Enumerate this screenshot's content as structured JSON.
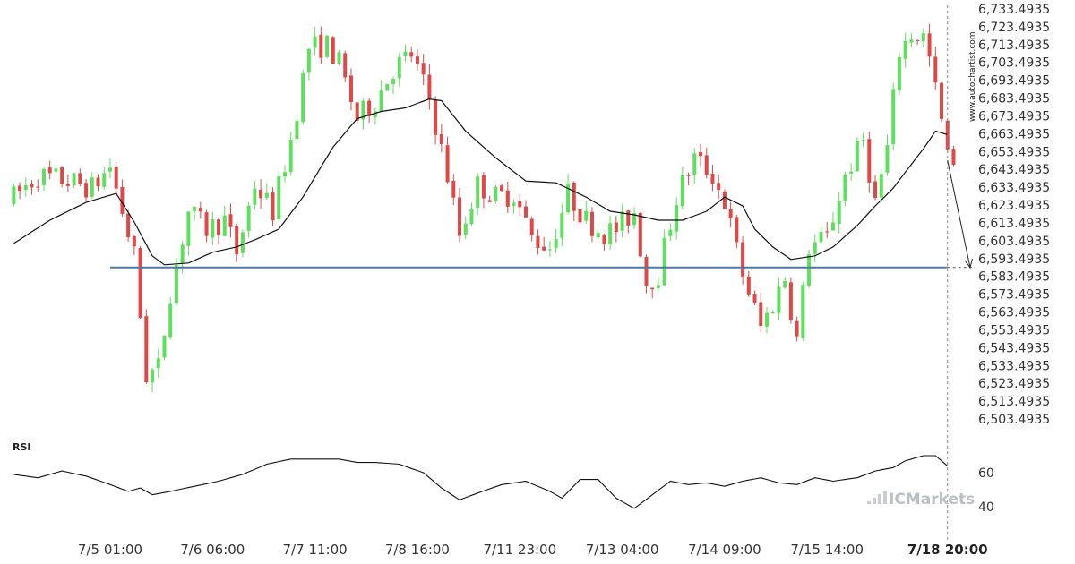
{
  "chart_data": {
    "type": "candlestick",
    "y_ticks": [
      "6,733.4935",
      "6,723.4935",
      "6,713.4935",
      "6,703.4935",
      "6,693.4935",
      "6,683.4935",
      "6,673.4935",
      "6,663.4935",
      "6,653.4935",
      "6,643.4935",
      "6,633.4935",
      "6,623.4935",
      "6,613.4935",
      "6,603.4935",
      "6,593.4935",
      "6,583.4935",
      "6,573.4935",
      "6,563.4935",
      "6,553.4935",
      "6,543.4935",
      "6,533.4935",
      "6,523.4935",
      "6,513.4935",
      "6,503.4935"
    ],
    "y_tick_values": [
      6733.4935,
      6723.4935,
      6713.4935,
      6703.4935,
      6693.4935,
      6683.4935,
      6673.4935,
      6663.4935,
      6653.4935,
      6643.4935,
      6633.4935,
      6623.4935,
      6613.4935,
      6603.4935,
      6593.4935,
      6583.4935,
      6573.4935,
      6563.4935,
      6553.4935,
      6543.4935,
      6533.4935,
      6523.4935,
      6513.4935,
      6503.4935
    ],
    "x_ticks": [
      "7/5 01:00",
      "7/6 06:00",
      "7/7 11:00",
      "7/8 16:00",
      "7/11 23:00",
      "7/13 04:00",
      "7/14 09:00",
      "7/15 14:00",
      "7/18 20:00"
    ],
    "x_tick_bars": [
      16,
      33,
      50,
      67,
      84,
      101,
      118,
      135,
      155
    ],
    "bar_count": 160,
    "ylim": [
      6499.5,
      6735.5
    ],
    "resistance_level": 6588.4935,
    "support_line_start_bar": 16,
    "current_bar": 155,
    "forecast": {
      "from_bar": 155,
      "from_value": 6648.5,
      "to_bar": 170,
      "to_value": 6588.5
    },
    "anchors": [
      [
        0,
        6625
      ],
      [
        5,
        6640
      ],
      [
        10,
        6637
      ],
      [
        14,
        6633
      ],
      [
        17,
        6645
      ],
      [
        19,
        6620
      ],
      [
        21,
        6595
      ],
      [
        23,
        6528
      ],
      [
        25,
        6532
      ],
      [
        27,
        6575
      ],
      [
        30,
        6620
      ],
      [
        33,
        6610
      ],
      [
        36,
        6615
      ],
      [
        38,
        6597
      ],
      [
        41,
        6635
      ],
      [
        44,
        6620
      ],
      [
        47,
        6660
      ],
      [
        50,
        6712
      ],
      [
        53,
        6713
      ],
      [
        55,
        6703
      ],
      [
        58,
        6672
      ],
      [
        61,
        6682
      ],
      [
        64,
        6700
      ],
      [
        67,
        6708
      ],
      [
        70,
        6683
      ],
      [
        73,
        6640
      ],
      [
        75,
        6607
      ],
      [
        78,
        6635
      ],
      [
        81,
        6628
      ],
      [
        84,
        6630
      ],
      [
        87,
        6605
      ],
      [
        90,
        6600
      ],
      [
        93,
        6630
      ],
      [
        96,
        6615
      ],
      [
        99,
        6608
      ],
      [
        101,
        6610
      ],
      [
        104,
        6620
      ],
      [
        106,
        6580
      ],
      [
        108,
        6585
      ],
      [
        111,
        6628
      ],
      [
        114,
        6650
      ],
      [
        117,
        6640
      ],
      [
        119,
        6625
      ],
      [
        122,
        6585
      ],
      [
        125,
        6555
      ],
      [
        127,
        6568
      ],
      [
        129,
        6583
      ],
      [
        131,
        6548
      ],
      [
        133,
        6600
      ],
      [
        136,
        6605
      ],
      [
        139,
        6640
      ],
      [
        142,
        6660
      ],
      [
        144,
        6625
      ],
      [
        146,
        6655
      ],
      [
        148,
        6710
      ],
      [
        150,
        6719
      ],
      [
        152,
        6718
      ],
      [
        153,
        6705
      ],
      [
        155,
        6670
      ],
      [
        156,
        6650
      ]
    ],
    "ma": [
      [
        0,
        6602
      ],
      [
        6,
        6615
      ],
      [
        12,
        6625
      ],
      [
        17,
        6630
      ],
      [
        20,
        6614
      ],
      [
        23,
        6595
      ],
      [
        25,
        6590
      ],
      [
        29,
        6591
      ],
      [
        33,
        6597
      ],
      [
        37,
        6600
      ],
      [
        40,
        6604
      ],
      [
        44,
        6610
      ],
      [
        48,
        6628
      ],
      [
        53,
        6656
      ],
      [
        57,
        6672
      ],
      [
        61,
        6676
      ],
      [
        65,
        6678
      ],
      [
        69,
        6683
      ],
      [
        71,
        6682
      ],
      [
        75,
        6665
      ],
      [
        80,
        6650
      ],
      [
        85,
        6637
      ],
      [
        90,
        6636
      ],
      [
        95,
        6628
      ],
      [
        99,
        6620
      ],
      [
        103,
        6618
      ],
      [
        107,
        6615
      ],
      [
        111,
        6615
      ],
      [
        115,
        6620
      ],
      [
        118,
        6628
      ],
      [
        121,
        6623
      ],
      [
        123,
        6610
      ],
      [
        126,
        6600
      ],
      [
        129,
        6593
      ],
      [
        133,
        6595
      ],
      [
        136,
        6600
      ],
      [
        140,
        6612
      ],
      [
        143,
        6623
      ],
      [
        146,
        6633
      ],
      [
        148,
        6642
      ],
      [
        151,
        6655
      ],
      [
        153,
        6665
      ],
      [
        155,
        6663
      ]
    ],
    "rsi": {
      "title": "RSI",
      "ticks": [
        60,
        40
      ],
      "ylim": [
        20,
        80
      ],
      "anchors": [
        [
          0,
          59
        ],
        [
          4,
          57
        ],
        [
          8,
          61
        ],
        [
          12,
          58
        ],
        [
          16,
          53
        ],
        [
          19,
          49
        ],
        [
          21,
          51
        ],
        [
          23,
          47
        ],
        [
          26,
          49
        ],
        [
          30,
          52
        ],
        [
          34,
          55
        ],
        [
          38,
          59
        ],
        [
          42,
          65
        ],
        [
          46,
          68
        ],
        [
          50,
          68
        ],
        [
          54,
          68
        ],
        [
          57,
          66
        ],
        [
          60,
          66
        ],
        [
          64,
          65
        ],
        [
          68,
          60
        ],
        [
          71,
          51
        ],
        [
          74,
          44
        ],
        [
          77,
          48
        ],
        [
          81,
          53
        ],
        [
          85,
          55
        ],
        [
          89,
          49
        ],
        [
          91,
          45
        ],
        [
          94,
          56
        ],
        [
          97,
          56
        ],
        [
          100,
          45
        ],
        [
          103,
          39
        ],
        [
          106,
          47
        ],
        [
          109,
          55
        ],
        [
          112,
          53
        ],
        [
          115,
          54
        ],
        [
          118,
          52
        ],
        [
          121,
          55
        ],
        [
          124,
          57
        ],
        [
          127,
          54
        ],
        [
          130,
          53
        ],
        [
          133,
          57
        ],
        [
          136,
          55
        ],
        [
          140,
          57
        ],
        [
          143,
          61
        ],
        [
          146,
          63
        ],
        [
          148,
          67
        ],
        [
          151,
          70
        ],
        [
          153,
          70
        ],
        [
          155,
          64
        ]
      ]
    }
  },
  "watermark": "www.autochartist.com",
  "brand": "ICMarkets",
  "colors": {
    "up": "#5ee05e",
    "down": "#e04848",
    "resistance": "#4a7aa7",
    "ma": "#111111",
    "rsi": "#111111",
    "grid": "#cccccc",
    "panel_bg": "#ffffff"
  }
}
